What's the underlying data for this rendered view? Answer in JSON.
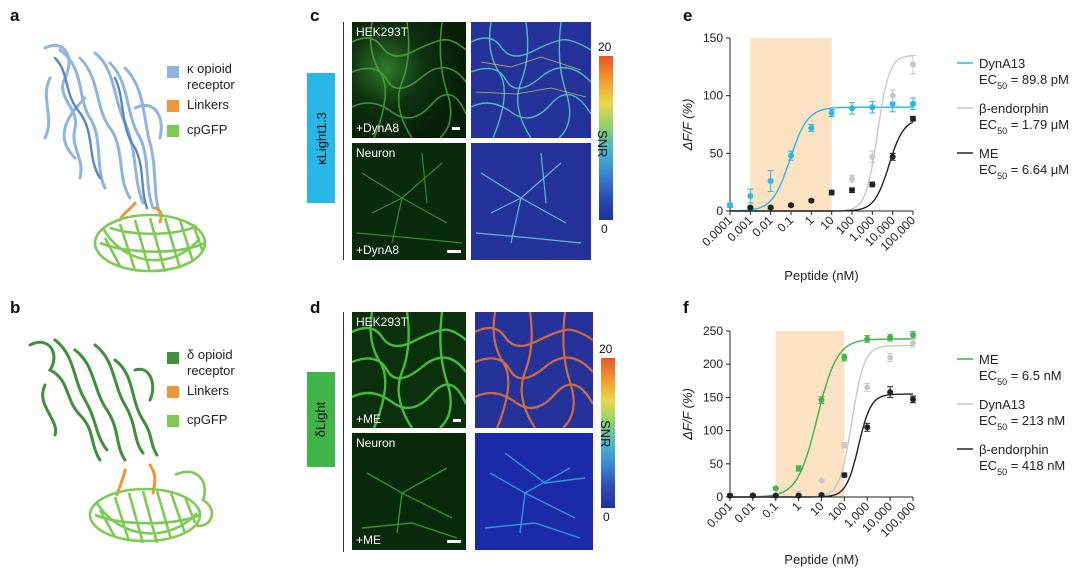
{
  "panels": {
    "a": {
      "label": "a",
      "legend": [
        {
          "line1": "κ opioid",
          "line2": "receptor",
          "color": "#8fb4df"
        },
        {
          "line1": "Linkers",
          "line2": "",
          "color": "#f0953a"
        },
        {
          "line1": "cpGFP",
          "line2": "",
          "color": "#7dcb55"
        }
      ]
    },
    "b": {
      "label": "b",
      "legend": [
        {
          "line1": "δ opioid",
          "line2": "receptor",
          "color": "#3f8f3c"
        },
        {
          "line1": "Linkers",
          "line2": "",
          "color": "#f0953a"
        },
        {
          "line1": "cpGFP",
          "line2": "",
          "color": "#7dcb55"
        }
      ]
    },
    "c": {
      "label": "c",
      "sensor": "κLight1.3",
      "sensor_color": "#29b7e7",
      "top_cell": "HEK293T",
      "top_ligand": "+DynA8",
      "bottom_cell": "Neuron",
      "bottom_ligand": "+DynA8",
      "colorbar_max": "20",
      "colorbar_min": "0",
      "colorbar_label": "SNR"
    },
    "d": {
      "label": "d",
      "sensor": "δLight",
      "sensor_color": "#3fb54a",
      "top_cell": "HEK293T",
      "top_ligand": "+ME",
      "bottom_cell": "Neuron",
      "bottom_ligand": "+ME",
      "colorbar_max": "20",
      "colorbar_min": "0",
      "colorbar_label": "SNR"
    },
    "e": {
      "label": "e"
    },
    "f": {
      "label": "f"
    }
  },
  "chart_data": [
    {
      "panel": "e",
      "type": "scatter",
      "xscale": "log",
      "xlim": [
        0.0001,
        100000
      ],
      "ylim": [
        0,
        150
      ],
      "xticks": [
        "0.0001",
        "0.001",
        "0.01",
        "0.1",
        "1",
        "10",
        "100",
        "1,000",
        "10,000",
        "100,000"
      ],
      "yticks": [
        "0",
        "50",
        "100",
        "150"
      ],
      "xlabel": "Peptide (nM)",
      "ylabel": "ΔF/F (%)",
      "shaded_x": [
        0.001,
        10
      ],
      "series": [
        {
          "name": "DynA13",
          "ec50_label": "EC50 = 89.8 pM",
          "color": "#29b7e7",
          "ec50_nM": 0.0898,
          "top": 90,
          "hill": 1.0,
          "x": [
            0.0001,
            0.001,
            0.01,
            0.1,
            1,
            10,
            100,
            1000,
            10000,
            100000
          ],
          "y": [
            5,
            13,
            26,
            48,
            72,
            85,
            89,
            90,
            93,
            93
          ],
          "err": [
            2,
            6,
            9,
            4,
            3,
            3,
            5,
            5,
            7,
            5
          ]
        },
        {
          "name": "β-endorphin",
          "ec50_label": "EC50 = 1.79 μM",
          "color": "#c8c8c8",
          "ec50_nM": 1790,
          "top": 135,
          "hill": 1.5,
          "x": [
            100,
            1000,
            10000,
            100000
          ],
          "y": [
            28,
            47,
            100,
            127
          ],
          "err": [
            3,
            5,
            5,
            8
          ]
        },
        {
          "name": "ME",
          "ec50_label": "EC50 = 6.64 μM",
          "color": "#222222",
          "ec50_nM": 6640,
          "top": 80,
          "hill": 1.2,
          "x": [
            0.001,
            0.01,
            0.1,
            1,
            10,
            100,
            1000,
            10000,
            100000
          ],
          "y": [
            3,
            3,
            5,
            9,
            16,
            18,
            23,
            47,
            80
          ],
          "err": [
            1,
            1,
            1,
            1,
            2,
            2,
            2,
            3,
            2
          ]
        }
      ]
    },
    {
      "panel": "f",
      "type": "scatter",
      "xscale": "log",
      "xlim": [
        0.001,
        100000
      ],
      "ylim": [
        0,
        250
      ],
      "xticks": [
        "0.001",
        "0.01",
        "0.1",
        "1",
        "10",
        "100",
        "1,000",
        "10,000",
        "100,000"
      ],
      "yticks": [
        "0",
        "50",
        "100",
        "150",
        "200",
        "250"
      ],
      "xlabel": "Peptide (nM)",
      "ylabel": "ΔF/F (%)",
      "shaded_x": [
        0.1,
        100
      ],
      "series": [
        {
          "name": "ME",
          "ec50_label": "EC50 = 6.5 nM",
          "color": "#3fb54a",
          "ec50_nM": 6.5,
          "top": 238,
          "hill": 1.0,
          "x": [
            0.001,
            0.01,
            0.1,
            1,
            10,
            100,
            1000,
            10000,
            100000
          ],
          "y": [
            3,
            3,
            13,
            43,
            146,
            210,
            238,
            240,
            244
          ],
          "err": [
            2,
            2,
            2,
            4,
            5,
            5,
            5,
            5,
            5
          ]
        },
        {
          "name": "DynA13",
          "ec50_label": "EC50 = 213 nM",
          "color": "#c8c8c8",
          "ec50_nM": 213,
          "top": 228,
          "hill": 1.6,
          "x": [
            0.001,
            0.01,
            0.1,
            1,
            10,
            100,
            1000,
            10000,
            100000
          ],
          "y": [
            3,
            3,
            3,
            5,
            25,
            78,
            165,
            210,
            232
          ],
          "err": [
            1,
            1,
            1,
            1,
            2,
            4,
            6,
            6,
            6
          ]
        },
        {
          "name": "β-endorphin",
          "ec50_label": "EC50 = 418 nM",
          "color": "#222222",
          "ec50_nM": 418,
          "top": 155,
          "hill": 1.6,
          "x": [
            0.001,
            0.01,
            0.1,
            1,
            10,
            100,
            1000,
            10000,
            100000
          ],
          "y": [
            2,
            2,
            2,
            2,
            3,
            33,
            105,
            158,
            147
          ],
          "err": [
            1,
            1,
            1,
            1,
            1,
            3,
            6,
            8,
            5
          ]
        }
      ]
    }
  ]
}
